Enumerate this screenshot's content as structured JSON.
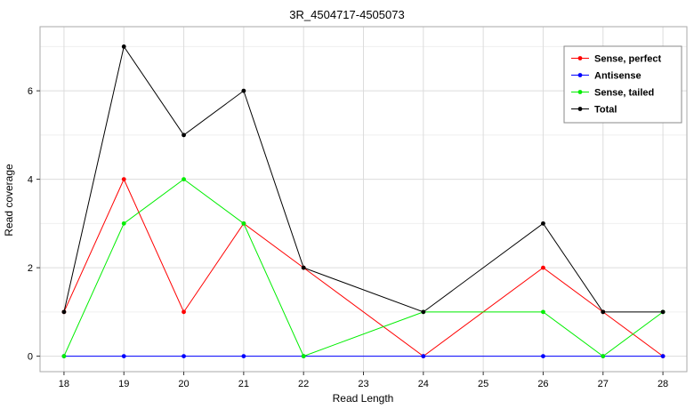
{
  "title": "3R_4504717-4505073",
  "chart_data": {
    "type": "line",
    "title": "3R_4504717-4505073",
    "xlabel": "Read Length",
    "ylabel": "Read coverage",
    "x": [
      18,
      19,
      20,
      21,
      22,
      24,
      26,
      27,
      28
    ],
    "xticks": [
      18,
      19,
      20,
      21,
      22,
      23,
      24,
      25,
      26,
      27,
      28
    ],
    "yticks": [
      0,
      2,
      4,
      6
    ],
    "yticks_minor": [
      1,
      3,
      5,
      7
    ],
    "xlim": [
      17.6,
      28.4
    ],
    "ylim": [
      -0.35,
      7.45
    ],
    "grid": true,
    "legend_position": "top-right",
    "series": [
      {
        "name": "Sense, perfect",
        "color": "#ff0000",
        "values": [
          1,
          4,
          1,
          3,
          2,
          0,
          2,
          1,
          0
        ]
      },
      {
        "name": "Antisense",
        "color": "#0000ff",
        "values": [
          0,
          0,
          0,
          0,
          0,
          0,
          0,
          0,
          0
        ]
      },
      {
        "name": "Sense, tailed",
        "color": "#00ee00",
        "values": [
          0,
          3,
          4,
          3,
          0,
          1,
          1,
          0,
          1
        ]
      },
      {
        "name": "Total",
        "color": "#000000",
        "values": [
          1,
          7,
          5,
          6,
          2,
          1,
          3,
          1,
          1
        ]
      }
    ],
    "panel_border_color": "#aaaaaa",
    "grid_major_color": "#dcdcdc",
    "grid_minor_color": "#efefef"
  }
}
